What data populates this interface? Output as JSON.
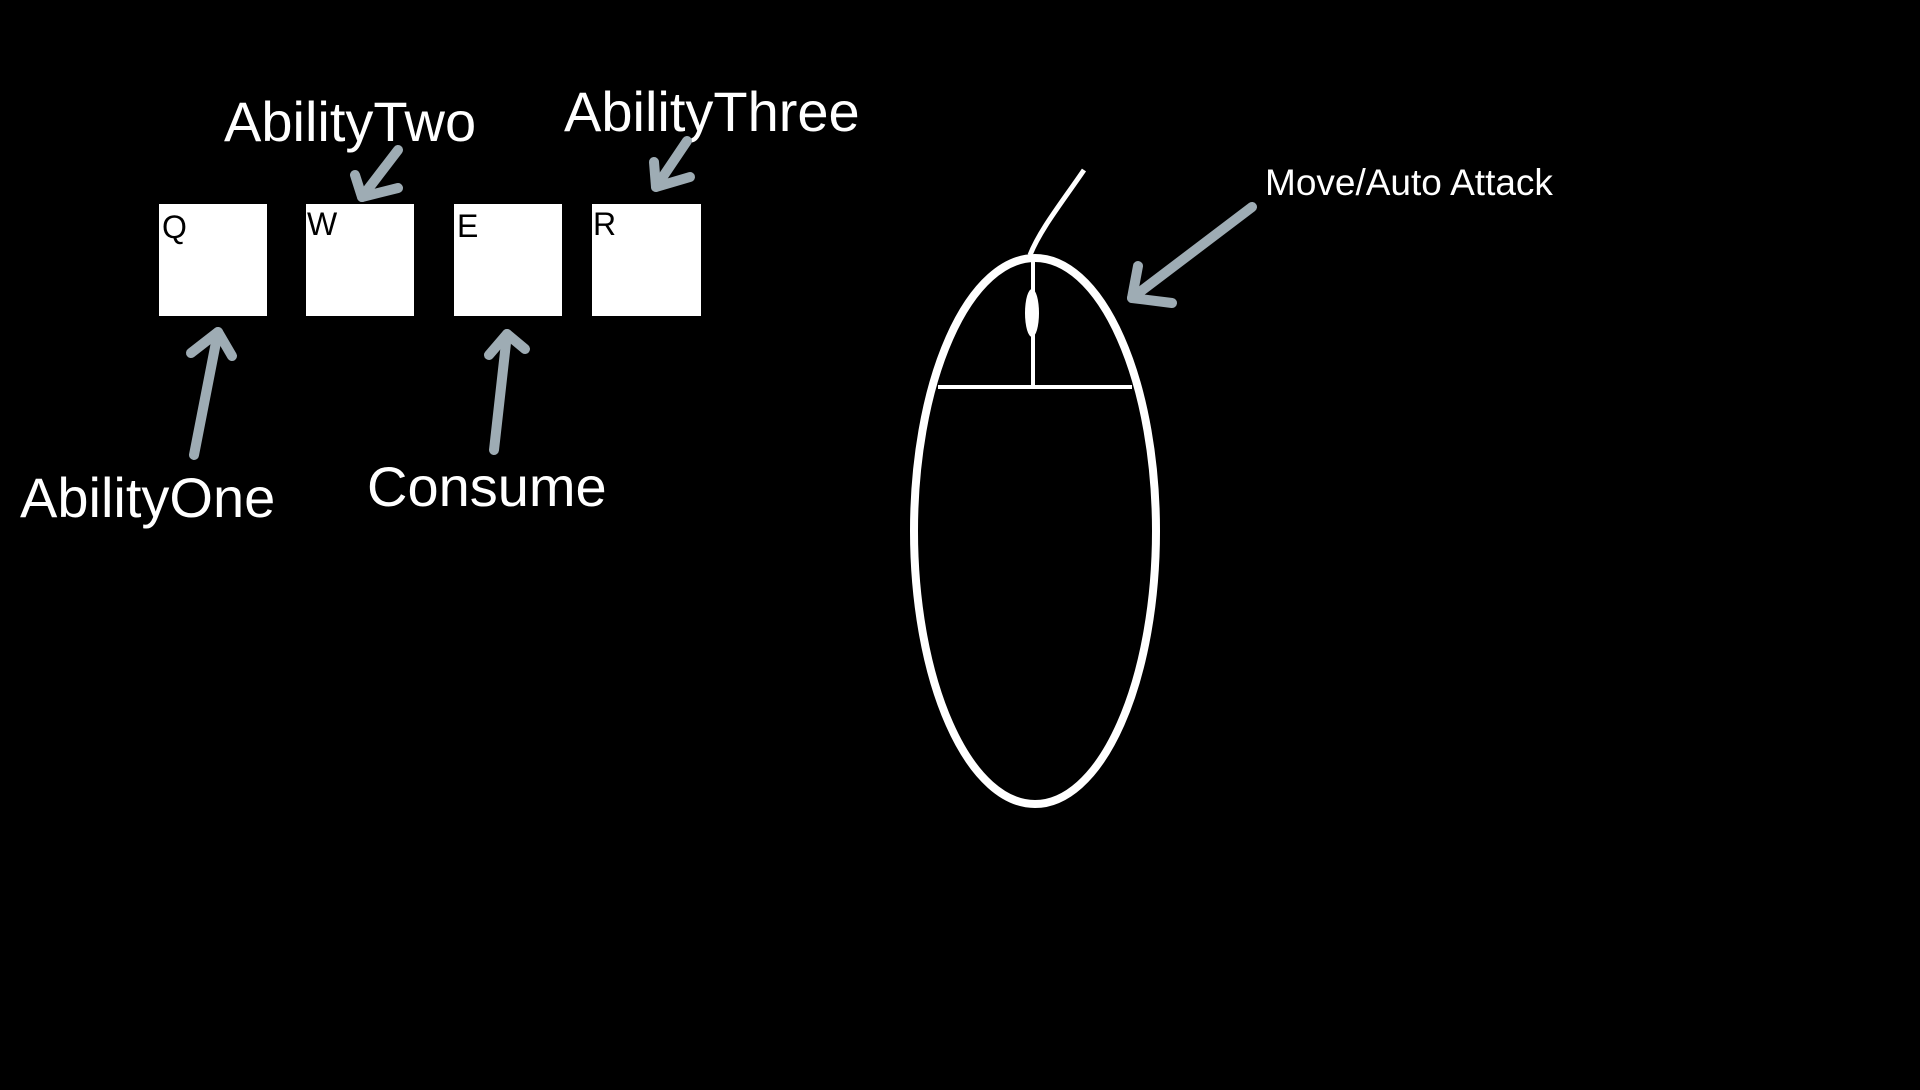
{
  "keys": [
    {
      "letter": "Q"
    },
    {
      "letter": "W"
    },
    {
      "letter": "E"
    },
    {
      "letter": "R"
    }
  ],
  "labels": {
    "ability_one": "AbilityOne",
    "ability_two": "AbilityTwo",
    "ability_three": "AbilityThree",
    "consume": "Consume",
    "move_auto_attack": "Move/Auto Attack"
  },
  "colors": {
    "background": "#000000",
    "foreground": "#ffffff",
    "arrow": "#9eacb4"
  }
}
